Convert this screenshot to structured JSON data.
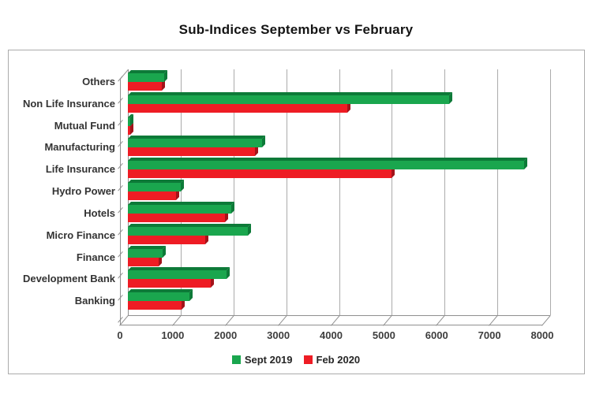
{
  "title": "Sub-Indices September vs February",
  "chart_data": {
    "type": "bar",
    "orientation": "horizontal",
    "style": "3d-clustered",
    "title": "Sub-Indices September vs February",
    "categories_top_to_bottom": [
      "Others",
      "Non Life Insurance",
      "Mutual Fund",
      "Manufacturing",
      "Life Insurance",
      "Hydro Power",
      "Hotels",
      "Micro Finance",
      "Finance",
      "Development Bank",
      "Banking"
    ],
    "series": [
      {
        "name": "Sept 2019",
        "color": "#1aa64e",
        "color_dark": "#0d7a38",
        "values": [
          690,
          6080,
          45,
          2540,
          7500,
          1000,
          1960,
          2280,
          660,
          1870,
          1160
        ]
      },
      {
        "name": "Feb 2020",
        "color": "#ee1c24",
        "color_dark": "#a3131a",
        "values": [
          640,
          4150,
          40,
          2400,
          4990,
          910,
          1840,
          1460,
          580,
          1570,
          1010
        ]
      }
    ],
    "xlim": [
      0,
      8000
    ],
    "x_ticks": [
      0,
      1000,
      2000,
      3000,
      4000,
      5000,
      6000,
      7000,
      8000
    ],
    "xlabel": "",
    "ylabel": "",
    "grid": true,
    "legend_position": "bottom",
    "gridline_color": "#ababab",
    "wall_color": "#8f8f8f"
  }
}
